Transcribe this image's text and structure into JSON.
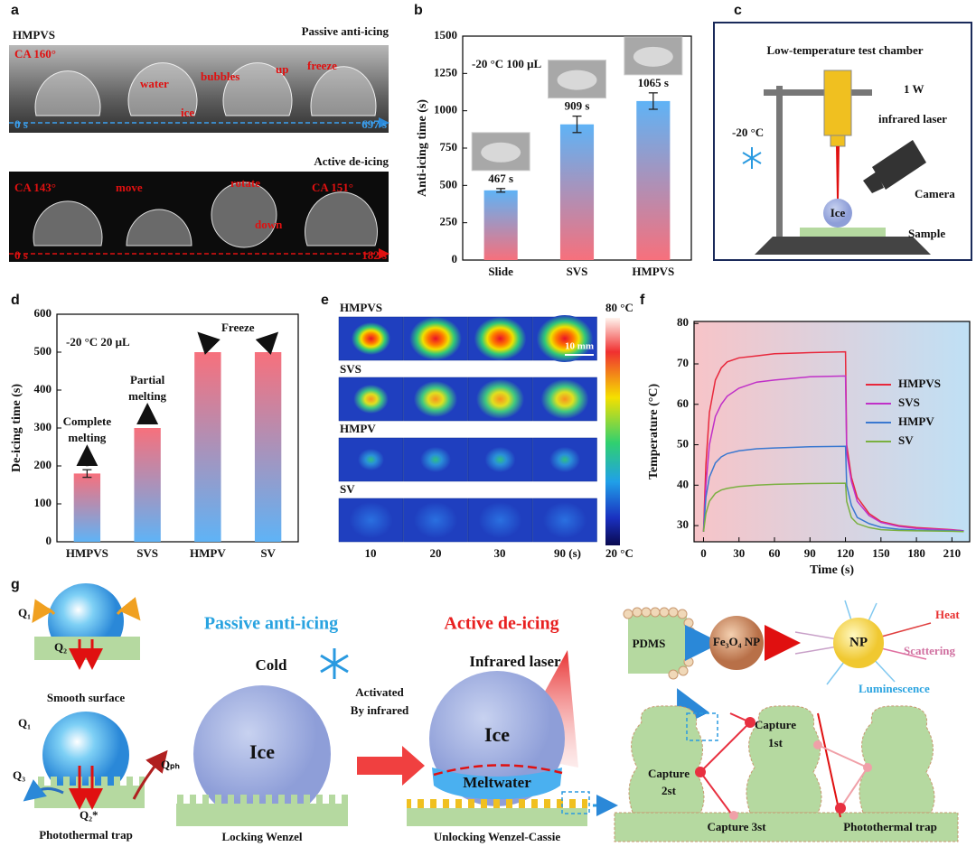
{
  "panel_labels": [
    "a",
    "b",
    "c",
    "d",
    "e",
    "f",
    "g"
  ],
  "chart_data": [
    {
      "type": "bar",
      "categories": [
        "Slide",
        "SVS",
        "HMPVS"
      ],
      "values": [
        467,
        909,
        1065
      ],
      "value_labels": [
        "467 s",
        "909 s",
        "1065 s"
      ],
      "errors": [
        12,
        55,
        55
      ],
      "ylabel": "Anti-icing time (s)",
      "annotation": "-20 °C 100 μL",
      "ylim": [
        0,
        1500
      ],
      "yticks": [
        0,
        250,
        500,
        750,
        1000,
        1250,
        1500
      ],
      "gradient": [
        "#f7707c",
        "#5fb3f6"
      ]
    },
    {
      "type": "bar",
      "categories": [
        "HMPVS",
        "SVS",
        "HMPV",
        "SV"
      ],
      "values": [
        180,
        300,
        500,
        500
      ],
      "errors": [
        10,
        null,
        null,
        null
      ],
      "ylabel": "De-icing time (s)",
      "annotation": "-20 °C  20 μL",
      "annotations": [
        [
          "Complete",
          "melting"
        ],
        [
          "Partial",
          "melting"
        ],
        [
          "Freeze"
        ]
      ],
      "ylim": [
        0,
        600
      ],
      "yticks": [
        0,
        100,
        200,
        300,
        400,
        500,
        600
      ],
      "gradient": [
        "#5fb3f6",
        "#f7707c"
      ]
    },
    {
      "type": "line",
      "x": [
        0,
        2,
        5,
        10,
        15,
        20,
        30,
        45,
        60,
        90,
        120,
        121,
        125,
        130,
        140,
        150,
        165,
        180,
        210,
        220
      ],
      "series": [
        {
          "name": "HMPVS",
          "color": "#e8283c",
          "values": [
            28.5,
            45,
            58,
            66,
            69,
            70.5,
            71.5,
            72,
            72.5,
            72.8,
            73,
            50,
            42,
            37,
            33,
            31,
            30,
            29.5,
            29,
            28.7
          ]
        },
        {
          "name": "SVS",
          "color": "#c030c8",
          "values": [
            28.5,
            40,
            50,
            57,
            60,
            62,
            64,
            65.5,
            66,
            66.8,
            67,
            48,
            41,
            36,
            32.5,
            30.8,
            29.8,
            29.3,
            28.9,
            28.7
          ]
        },
        {
          "name": "HMPV",
          "color": "#3a78d0",
          "values": [
            28.5,
            37,
            42,
            45.5,
            47,
            47.8,
            48.5,
            49,
            49.2,
            49.5,
            49.6,
            40,
            35,
            32,
            30.5,
            29.6,
            29.1,
            28.9,
            28.7,
            28.6
          ]
        },
        {
          "name": "SV",
          "color": "#7ab040",
          "values": [
            28.5,
            33,
            36,
            38,
            38.8,
            39.2,
            39.7,
            40,
            40.2,
            40.4,
            40.5,
            36,
            32,
            30.5,
            29.5,
            29,
            28.8,
            28.7,
            28.6,
            28.5
          ]
        }
      ],
      "xlabel": "Time (s)",
      "ylabel": "Temperature (°C)",
      "xlim": [
        -8,
        225
      ],
      "xticks": [
        0,
        30,
        60,
        90,
        120,
        150,
        180,
        210
      ],
      "ylim": [
        26,
        80.5
      ],
      "yticks": [
        30,
        40,
        50,
        60,
        70,
        80
      ],
      "legend": "right"
    }
  ],
  "panel_a": {
    "sample": "HMPVS",
    "passive": "Passive anti-icing",
    "ca1": "CA 160°",
    "water": "water",
    "ice": "ice",
    "bubbles": "bubbles",
    "up": "up",
    "freeze": "freeze",
    "t0": "0 s",
    "t1": "697 s",
    "active": "Active de-icing",
    "ca2": "CA 143°",
    "move": "move",
    "rotate": "rotate",
    "down": "down",
    "ca3": "CA 151°",
    "t2": "0 s",
    "t3": "182 s"
  },
  "panel_c": {
    "title": "Low-temperature test chamber",
    "power": "1 W",
    "laser": "infrared laser",
    "temp": "-20 °C",
    "camera": "Camera",
    "ice": "Ice",
    "sample": "Sample"
  },
  "panel_e": {
    "rows": [
      "HMPVS",
      "SVS",
      "HMPV",
      "SV"
    ],
    "times": [
      "10",
      "20",
      "30",
      "90 (s)"
    ],
    "scale": "10 mm",
    "cmax": "80 °C",
    "cmin": "20 °C"
  },
  "panel_g": {
    "q1": "Q₁",
    "q2": "Q₂",
    "smooth": "Smooth surface",
    "q1b": "Q₁",
    "q3": "Q₃",
    "qph": "Qₚₕ",
    "q2b": "Q₂*",
    "trap": "Photothermal trap",
    "passive": "Passive anti-icing",
    "cold": "Cold",
    "ice": "Ice",
    "locking": "Locking Wenzel",
    "activated": [
      "Activated",
      "By infrared"
    ],
    "active": "Active de-icing",
    "laser": "Infrared laser",
    "ice2": "Ice",
    "meltwater": "Meltwater",
    "unlocking": "Unlocking Wenzel-Cassie",
    "pdms": "PDMS",
    "fe": "Fe₃O₄ NP",
    "np": "NP",
    "heat": "Heat",
    "scattering": "Scattering",
    "luminescence": "Luminescence",
    "capture1": [
      "Capture",
      "1st"
    ],
    "capture2": [
      "Capture",
      "2st"
    ],
    "capture3": "Capture 3st",
    "trap2": "Photothermal trap"
  }
}
